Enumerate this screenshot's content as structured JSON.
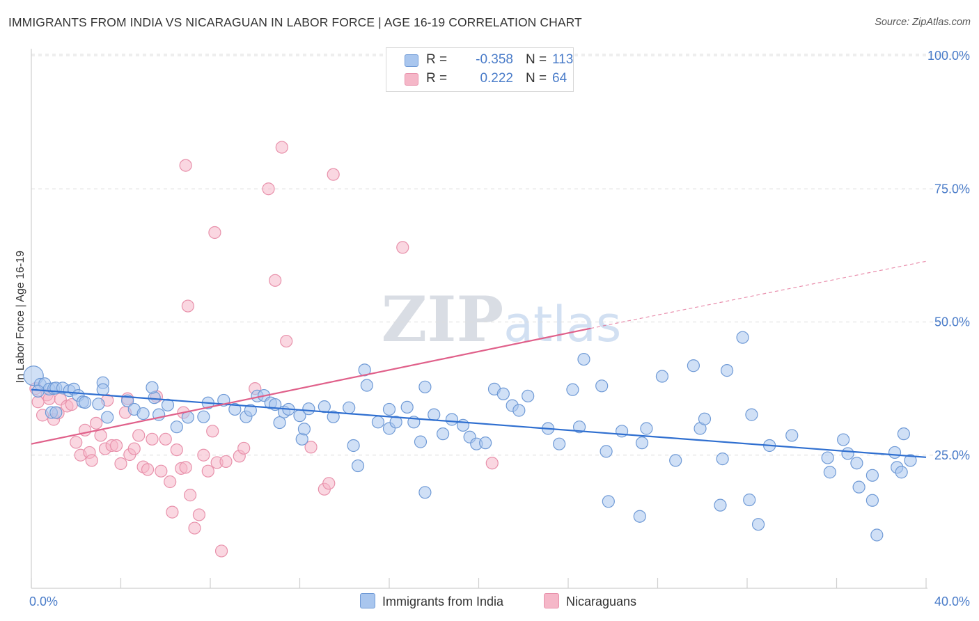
{
  "header": {
    "title": "IMMIGRANTS FROM INDIA VS NICARAGUAN IN LABOR FORCE | AGE 16-19 CORRELATION CHART",
    "source": "Source: ZipAtlas.com"
  },
  "watermark": "ZIPatlas",
  "stats": [
    {
      "r_label": "R =",
      "r_value": "-0.358",
      "n_label": "N =",
      "n_value": "113"
    },
    {
      "r_label": "R =",
      "r_value": "0.222",
      "n_label": "N =",
      "n_value": "64"
    }
  ],
  "legend": {
    "india": "Immigrants from India",
    "nicaraguans": "Nicaraguans"
  },
  "colors": {
    "india_fill": "#a9c6ee",
    "india_stroke": "#6f9ad6",
    "india_line": "#2f6fd0",
    "nicaraguan_fill": "#f5b7c8",
    "nicaraguan_stroke": "#e891ab",
    "nicaraguan_line": "#e0608a",
    "axis_text": "#4a7cc9"
  },
  "chart_data": {
    "type": "scatter",
    "title": "IMMIGRANTS FROM INDIA VS NICARAGUAN IN LABOR FORCE | AGE 16-19 CORRELATION CHART",
    "xlabel": "",
    "ylabel": "In Labor Force | Age 16-19",
    "xlim": [
      0,
      40
    ],
    "ylim": [
      0,
      102
    ],
    "x_tick_labels": [
      "0.0%",
      "40.0%"
    ],
    "y_ticks": [
      25,
      50,
      75,
      100
    ],
    "y_tick_labels": [
      "25.0%",
      "50.0%",
      "75.0%",
      "100.0%"
    ],
    "grid": "horizontal dashed",
    "legend_position": "bottom",
    "series": [
      {
        "name": "Immigrants from India",
        "trend": {
          "x": [
            0,
            40
          ],
          "y": [
            37.3,
            24.6
          ],
          "style": "solid"
        },
        "points": [
          [
            0.1,
            39.9
          ],
          [
            0.4,
            38.3
          ],
          [
            0.6,
            38.4
          ],
          [
            0.8,
            37.4
          ],
          [
            1.0,
            37.5
          ],
          [
            1.1,
            37.6
          ],
          [
            1.4,
            37.6
          ],
          [
            1.7,
            37.1
          ],
          [
            0.3,
            37.0
          ],
          [
            1.9,
            37.4
          ],
          [
            0.9,
            33.0
          ],
          [
            2.1,
            36.2
          ],
          [
            2.3,
            35.0
          ],
          [
            3.2,
            38.6
          ],
          [
            3.2,
            37.3
          ],
          [
            2.4,
            34.9
          ],
          [
            1.1,
            33.0
          ],
          [
            3.0,
            34.6
          ],
          [
            4.3,
            35.2
          ],
          [
            3.4,
            32.1
          ],
          [
            4.6,
            33.6
          ],
          [
            5.0,
            32.8
          ],
          [
            5.5,
            35.8
          ],
          [
            5.4,
            37.7
          ],
          [
            5.7,
            32.6
          ],
          [
            6.1,
            34.4
          ],
          [
            7.0,
            32.1
          ],
          [
            7.9,
            34.8
          ],
          [
            6.5,
            30.3
          ],
          [
            7.7,
            32.2
          ],
          [
            8.6,
            35.3
          ],
          [
            9.1,
            33.6
          ],
          [
            9.6,
            32.2
          ],
          [
            10.1,
            36.1
          ],
          [
            10.4,
            36.2
          ],
          [
            10.7,
            34.8
          ],
          [
            11.3,
            33.1
          ],
          [
            11.5,
            33.6
          ],
          [
            11.1,
            31.1
          ],
          [
            12.0,
            32.4
          ],
          [
            12.4,
            33.7
          ],
          [
            13.1,
            34.1
          ],
          [
            13.5,
            32.2
          ],
          [
            14.2,
            33.9
          ],
          [
            14.4,
            26.8
          ],
          [
            14.6,
            23.0
          ],
          [
            12.1,
            28.0
          ],
          [
            15.0,
            38.1
          ],
          [
            14.9,
            41.0
          ],
          [
            15.5,
            31.2
          ],
          [
            16.0,
            33.6
          ],
          [
            16.0,
            30.0
          ],
          [
            16.3,
            31.2
          ],
          [
            16.8,
            34.0
          ],
          [
            17.1,
            31.2
          ],
          [
            17.4,
            27.5
          ],
          [
            17.6,
            37.8
          ],
          [
            18.0,
            32.6
          ],
          [
            18.4,
            29.0
          ],
          [
            18.8,
            31.7
          ],
          [
            19.3,
            30.6
          ],
          [
            19.6,
            28.4
          ],
          [
            19.9,
            27.1
          ],
          [
            20.3,
            27.3
          ],
          [
            20.7,
            37.4
          ],
          [
            21.1,
            36.5
          ],
          [
            21.5,
            34.3
          ],
          [
            21.8,
            33.4
          ],
          [
            22.2,
            36.1
          ],
          [
            23.1,
            30.0
          ],
          [
            24.2,
            37.3
          ],
          [
            23.6,
            27.1
          ],
          [
            24.5,
            30.3
          ],
          [
            25.7,
            25.7
          ],
          [
            25.8,
            16.3
          ],
          [
            26.4,
            29.5
          ],
          [
            27.3,
            27.3
          ],
          [
            27.5,
            30.0
          ],
          [
            28.2,
            39.8
          ],
          [
            28.8,
            24.0
          ],
          [
            29.9,
            30.0
          ],
          [
            30.1,
            31.8
          ],
          [
            30.9,
            24.3
          ],
          [
            31.1,
            40.9
          ],
          [
            29.6,
            41.8
          ],
          [
            31.8,
            47.1
          ],
          [
            32.2,
            32.6
          ],
          [
            30.8,
            15.6
          ],
          [
            32.1,
            16.6
          ],
          [
            33.0,
            26.8
          ],
          [
            34.0,
            28.7
          ],
          [
            35.6,
            24.5
          ],
          [
            36.5,
            25.3
          ],
          [
            36.9,
            23.5
          ],
          [
            37.6,
            21.2
          ],
          [
            38.7,
            22.7
          ],
          [
            37.0,
            19.0
          ],
          [
            37.8,
            10.0
          ],
          [
            37.6,
            16.5
          ],
          [
            39.0,
            29.0
          ],
          [
            38.9,
            21.8
          ],
          [
            35.7,
            21.8
          ],
          [
            36.3,
            27.9
          ],
          [
            38.6,
            25.5
          ],
          [
            39.3,
            24.0
          ],
          [
            27.2,
            13.5
          ],
          [
            24.7,
            43.0
          ],
          [
            12.2,
            29.9
          ],
          [
            9.8,
            33.4
          ],
          [
            10.9,
            34.5
          ],
          [
            17.6,
            18.0
          ],
          [
            25.5,
            38.0
          ],
          [
            32.5,
            12.0
          ]
        ]
      },
      {
        "name": "Nicaraguans",
        "trend": {
          "x": [
            0,
            25.0,
            40
          ],
          "y": [
            27.1,
            48.8,
            61.4
          ],
          "style": "solid then dashed"
        },
        "points": [
          [
            0.2,
            37.5
          ],
          [
            0.3,
            35.0
          ],
          [
            0.5,
            32.5
          ],
          [
            0.7,
            36.3
          ],
          [
            0.8,
            35.6
          ],
          [
            1.0,
            31.7
          ],
          [
            1.2,
            32.9
          ],
          [
            1.3,
            35.5
          ],
          [
            1.6,
            34.2
          ],
          [
            1.8,
            34.5
          ],
          [
            2.0,
            27.4
          ],
          [
            2.2,
            25.0
          ],
          [
            2.4,
            29.7
          ],
          [
            2.6,
            25.5
          ],
          [
            2.7,
            24.0
          ],
          [
            2.9,
            31.0
          ],
          [
            3.1,
            28.7
          ],
          [
            3.3,
            26.2
          ],
          [
            3.4,
            35.3
          ],
          [
            3.6,
            26.8
          ],
          [
            3.8,
            26.8
          ],
          [
            4.0,
            23.4
          ],
          [
            4.2,
            33.0
          ],
          [
            4.3,
            35.6
          ],
          [
            4.4,
            25.1
          ],
          [
            4.6,
            26.2
          ],
          [
            4.8,
            28.7
          ],
          [
            5.0,
            22.8
          ],
          [
            5.2,
            22.3
          ],
          [
            5.4,
            28.0
          ],
          [
            5.6,
            36.0
          ],
          [
            5.8,
            22.0
          ],
          [
            6.0,
            28.0
          ],
          [
            6.2,
            20.0
          ],
          [
            6.3,
            14.3
          ],
          [
            6.5,
            26.0
          ],
          [
            6.7,
            22.5
          ],
          [
            6.9,
            22.7
          ],
          [
            7.1,
            17.5
          ],
          [
            7.3,
            11.3
          ],
          [
            7.5,
            13.8
          ],
          [
            7.7,
            25.0
          ],
          [
            7.9,
            22.0
          ],
          [
            8.1,
            29.5
          ],
          [
            8.3,
            23.6
          ],
          [
            8.5,
            7.0
          ],
          [
            8.7,
            23.8
          ],
          [
            9.3,
            24.8
          ],
          [
            9.5,
            26.3
          ],
          [
            6.9,
            79.4
          ],
          [
            8.2,
            66.8
          ],
          [
            7.0,
            53.0
          ],
          [
            10.6,
            75.0
          ],
          [
            11.2,
            82.8
          ],
          [
            10.9,
            57.8
          ],
          [
            13.5,
            77.7
          ],
          [
            16.6,
            64.0
          ],
          [
            11.4,
            46.4
          ],
          [
            12.5,
            26.5
          ],
          [
            13.1,
            18.6
          ],
          [
            13.3,
            19.7
          ],
          [
            20.6,
            23.5
          ],
          [
            6.8,
            33.0
          ],
          [
            10.0,
            37.5
          ]
        ]
      }
    ]
  }
}
